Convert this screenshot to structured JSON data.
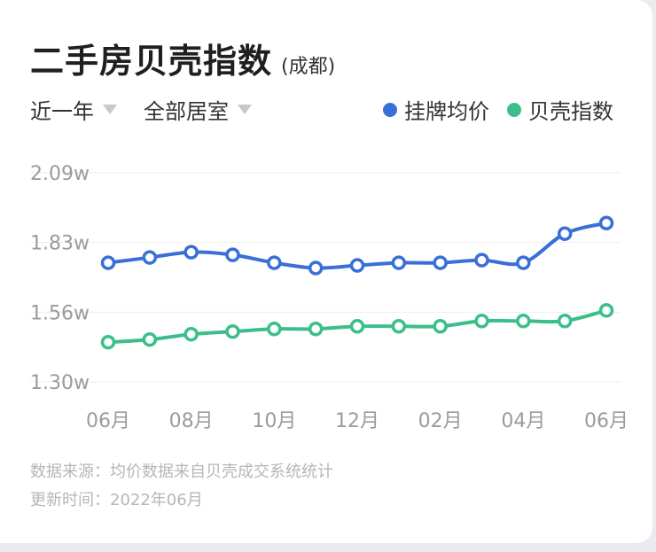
{
  "header": {
    "title": "二手房贝壳指数",
    "city": "(成都)"
  },
  "filters": [
    {
      "label": "近一年"
    },
    {
      "label": "全部居室"
    }
  ],
  "chart_data": {
    "type": "line",
    "y_ticks": [
      "2.09w",
      "1.83w",
      "1.56w",
      "1.30w"
    ],
    "ylim": [
      1.3,
      2.09
    ],
    "x_ticks": [
      "06月",
      "08月",
      "10月",
      "12月",
      "02月",
      "04月",
      "06月"
    ],
    "categories": [
      "2021-06",
      "2021-07",
      "2021-08",
      "2021-09",
      "2021-10",
      "2021-11",
      "2021-12",
      "2022-01",
      "2022-02",
      "2022-03",
      "2022-04",
      "2022-05",
      "2022-06"
    ],
    "grid": true,
    "legend": "top-right",
    "series": [
      {
        "name": "挂牌均价",
        "color": "#3a6fd8",
        "values": [
          1.75,
          1.77,
          1.79,
          1.78,
          1.75,
          1.73,
          1.74,
          1.75,
          1.75,
          1.76,
          1.75,
          1.86,
          1.9
        ]
      },
      {
        "name": "贝壳指数",
        "color": "#3bbf8a",
        "values": [
          1.45,
          1.46,
          1.48,
          1.49,
          1.5,
          1.5,
          1.51,
          1.51,
          1.51,
          1.53,
          1.53,
          1.53,
          1.57
        ]
      }
    ]
  },
  "footer": {
    "source": "数据来源：均价数据来自贝壳成交系统统计",
    "updated": "更新时间：2022年06月"
  }
}
